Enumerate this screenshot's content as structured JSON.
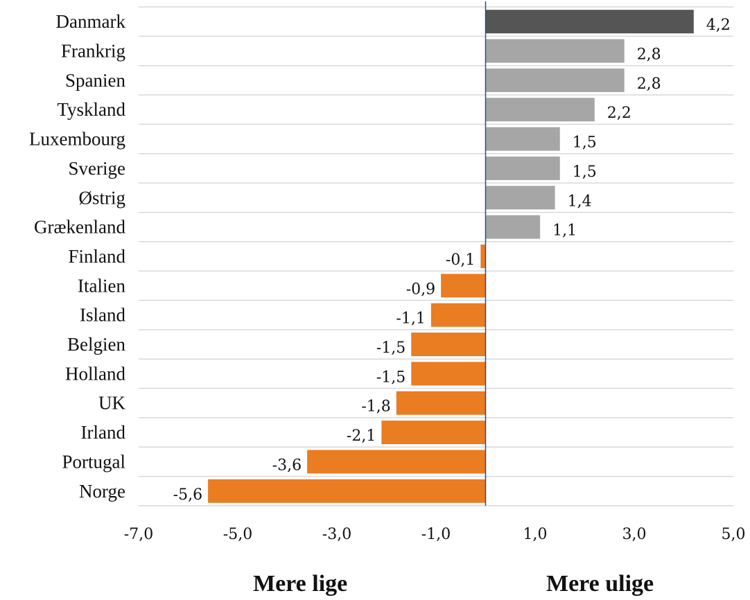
{
  "chart_data": {
    "type": "bar",
    "orientation": "horizontal",
    "categories": [
      "Danmark",
      "Frankrig",
      "Spanien",
      "Tyskland",
      "Luxembourg",
      "Sverige",
      "Østrig",
      "Grækenland",
      "Finland",
      "Italien",
      "Island",
      "Belgien",
      "Holland",
      "UK",
      "Irland",
      "Portugal",
      "Norge"
    ],
    "values": [
      4.2,
      2.8,
      2.8,
      2.2,
      1.5,
      1.5,
      1.4,
      1.1,
      -0.1,
      -0.9,
      -1.1,
      -1.5,
      -1.5,
      -1.8,
      -2.1,
      -3.6,
      -5.6
    ],
    "value_labels": [
      "4,2",
      "2,8",
      "2,8",
      "2,2",
      "1,5",
      "1,5",
      "1,4",
      "1,1",
      "-0,1",
      "-0,9",
      "-1,1",
      "-1,5",
      "-1,5",
      "-1,8",
      "-2,1",
      "-3,6",
      "-5,6"
    ],
    "xlim": [
      -7,
      5
    ],
    "xticks": [
      -7,
      -5,
      -3,
      -1,
      1,
      3,
      5
    ],
    "xtick_labels": [
      "-7,0",
      "-5,0",
      "-3,0",
      "-1,0",
      "1,0",
      "3,0",
      "5,0"
    ],
    "grid": "horizontal",
    "colors": {
      "highlight": "#555555",
      "positive": "#a6a6a6",
      "negative": "#ea7c22",
      "zero_line": "#2b4a8b",
      "grid": "#d9d9d9"
    },
    "highlight_category": "Danmark",
    "title": "",
    "xlabel": "",
    "ylabel": ""
  },
  "footer": {
    "left_label": "Mere lige",
    "right_label": "Mere ulige"
  }
}
